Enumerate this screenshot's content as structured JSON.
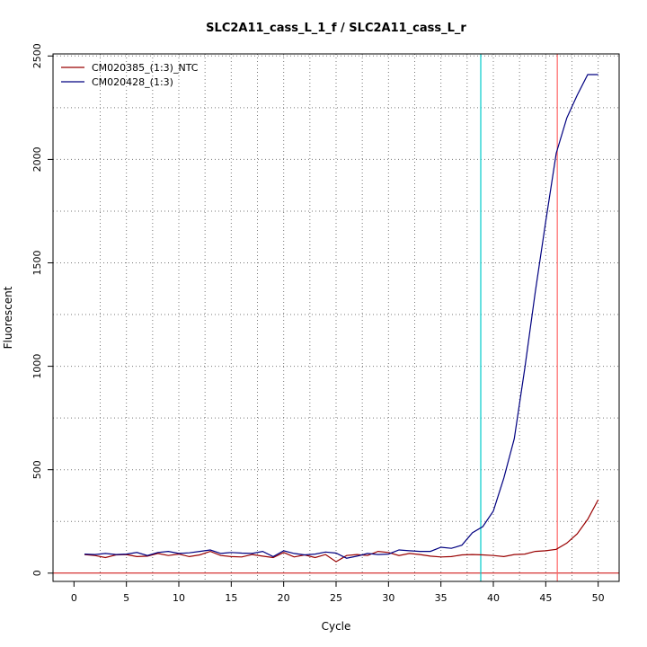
{
  "chart_data": {
    "type": "line",
    "title": "SLC2A11_cass_L_1_f / SLC2A11_cass_L_r",
    "xlabel": "Cycle",
    "ylabel": "Fluorescent",
    "xlim": [
      -2,
      52
    ],
    "ylim": [
      -40,
      2510
    ],
    "x_ticks": [
      0,
      5,
      10,
      15,
      20,
      25,
      30,
      35,
      40,
      45,
      50
    ],
    "y_ticks": [
      0,
      500,
      1000,
      1500,
      2000,
      2500
    ],
    "grid": true,
    "grid_style": "dotted",
    "legend_position": "top-left",
    "baseline_y": 0,
    "baseline_color": "#cc0000",
    "threshold_lines": [
      {
        "x": 38.8,
        "color": "#00cccc"
      },
      {
        "x": 46.1,
        "color": "#ff6666"
      }
    ],
    "series": [
      {
        "name": "CM020385_(1:3)_NTC",
        "color": "#990000",
        "x": [
          1,
          2,
          3,
          4,
          5,
          6,
          7,
          8,
          9,
          10,
          11,
          12,
          13,
          14,
          15,
          16,
          17,
          18,
          19,
          20,
          21,
          22,
          23,
          24,
          25,
          26,
          27,
          28,
          29,
          30,
          31,
          32,
          33,
          34,
          35,
          36,
          37,
          38,
          39,
          40,
          41,
          42,
          43,
          44,
          45,
          46,
          47,
          48,
          49,
          50
        ],
        "y": [
          90,
          85,
          75,
          88,
          90,
          80,
          82,
          95,
          85,
          92,
          80,
          88,
          105,
          85,
          80,
          78,
          90,
          82,
          75,
          100,
          78,
          88,
          75,
          90,
          55,
          85,
          90,
          85,
          105,
          100,
          85,
          95,
          90,
          82,
          78,
          80,
          88,
          90,
          88,
          85,
          80,
          90,
          92,
          105,
          108,
          115,
          145,
          190,
          260,
          355
        ]
      },
      {
        "name": "CM020428_(1:3)",
        "color": "#000080",
        "x": [
          1,
          2,
          3,
          4,
          5,
          6,
          7,
          8,
          9,
          10,
          11,
          12,
          13,
          14,
          15,
          16,
          17,
          18,
          19,
          20,
          21,
          22,
          23,
          24,
          25,
          26,
          27,
          28,
          29,
          30,
          31,
          32,
          33,
          34,
          35,
          36,
          37,
          38,
          39,
          40,
          41,
          42,
          43,
          44,
          45,
          46,
          47,
          48,
          49,
          50
        ],
        "y": [
          92,
          90,
          95,
          90,
          92,
          100,
          85,
          100,
          105,
          95,
          98,
          105,
          112,
          95,
          100,
          97,
          95,
          105,
          80,
          108,
          95,
          88,
          92,
          102,
          97,
          72,
          82,
          95,
          90,
          92,
          112,
          108,
          105,
          105,
          125,
          120,
          135,
          195,
          225,
          300,
          460,
          650,
          990,
          1360,
          1700,
          2030,
          2200,
          2310,
          2410,
          2410
        ]
      }
    ]
  }
}
